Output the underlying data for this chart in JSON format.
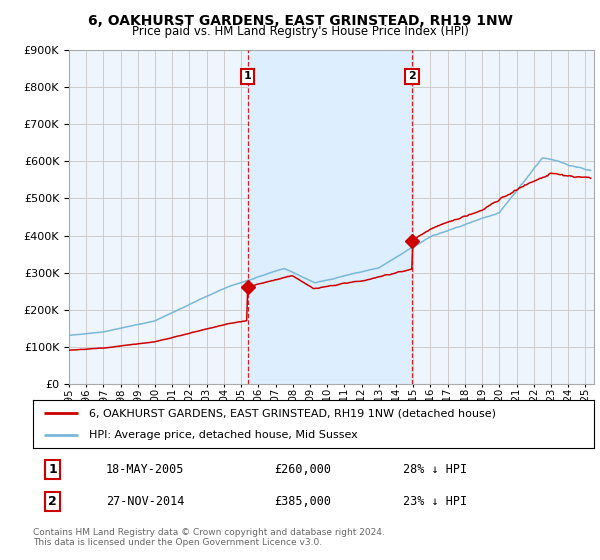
{
  "title": "6, OAKHURST GARDENS, EAST GRINSTEAD, RH19 1NW",
  "subtitle": "Price paid vs. HM Land Registry's House Price Index (HPI)",
  "ylim": [
    0,
    900000
  ],
  "xlim_start": 1995.0,
  "xlim_end": 2025.5,
  "purchase1_date": 2005.38,
  "purchase1_price": 260000,
  "purchase2_date": 2014.92,
  "purchase2_price": 385000,
  "hpi_color": "#7ab8d9",
  "price_color": "#cc0000",
  "vline_color": "#cc0000",
  "shade_color": "#ddeeff",
  "grid_color": "#cccccc",
  "background_color": "#eef5fc",
  "legend_label_price": "6, OAKHURST GARDENS, EAST GRINSTEAD, RH19 1NW (detached house)",
  "legend_label_hpi": "HPI: Average price, detached house, Mid Sussex",
  "table_entries": [
    {
      "num": "1",
      "date": "18-MAY-2005",
      "price": "£260,000",
      "pct": "28% ↓ HPI"
    },
    {
      "num": "2",
      "date": "27-NOV-2014",
      "price": "£385,000",
      "pct": "23% ↓ HPI"
    }
  ],
  "footer": "Contains HM Land Registry data © Crown copyright and database right 2024.\nThis data is licensed under the Open Government Licence v3.0."
}
